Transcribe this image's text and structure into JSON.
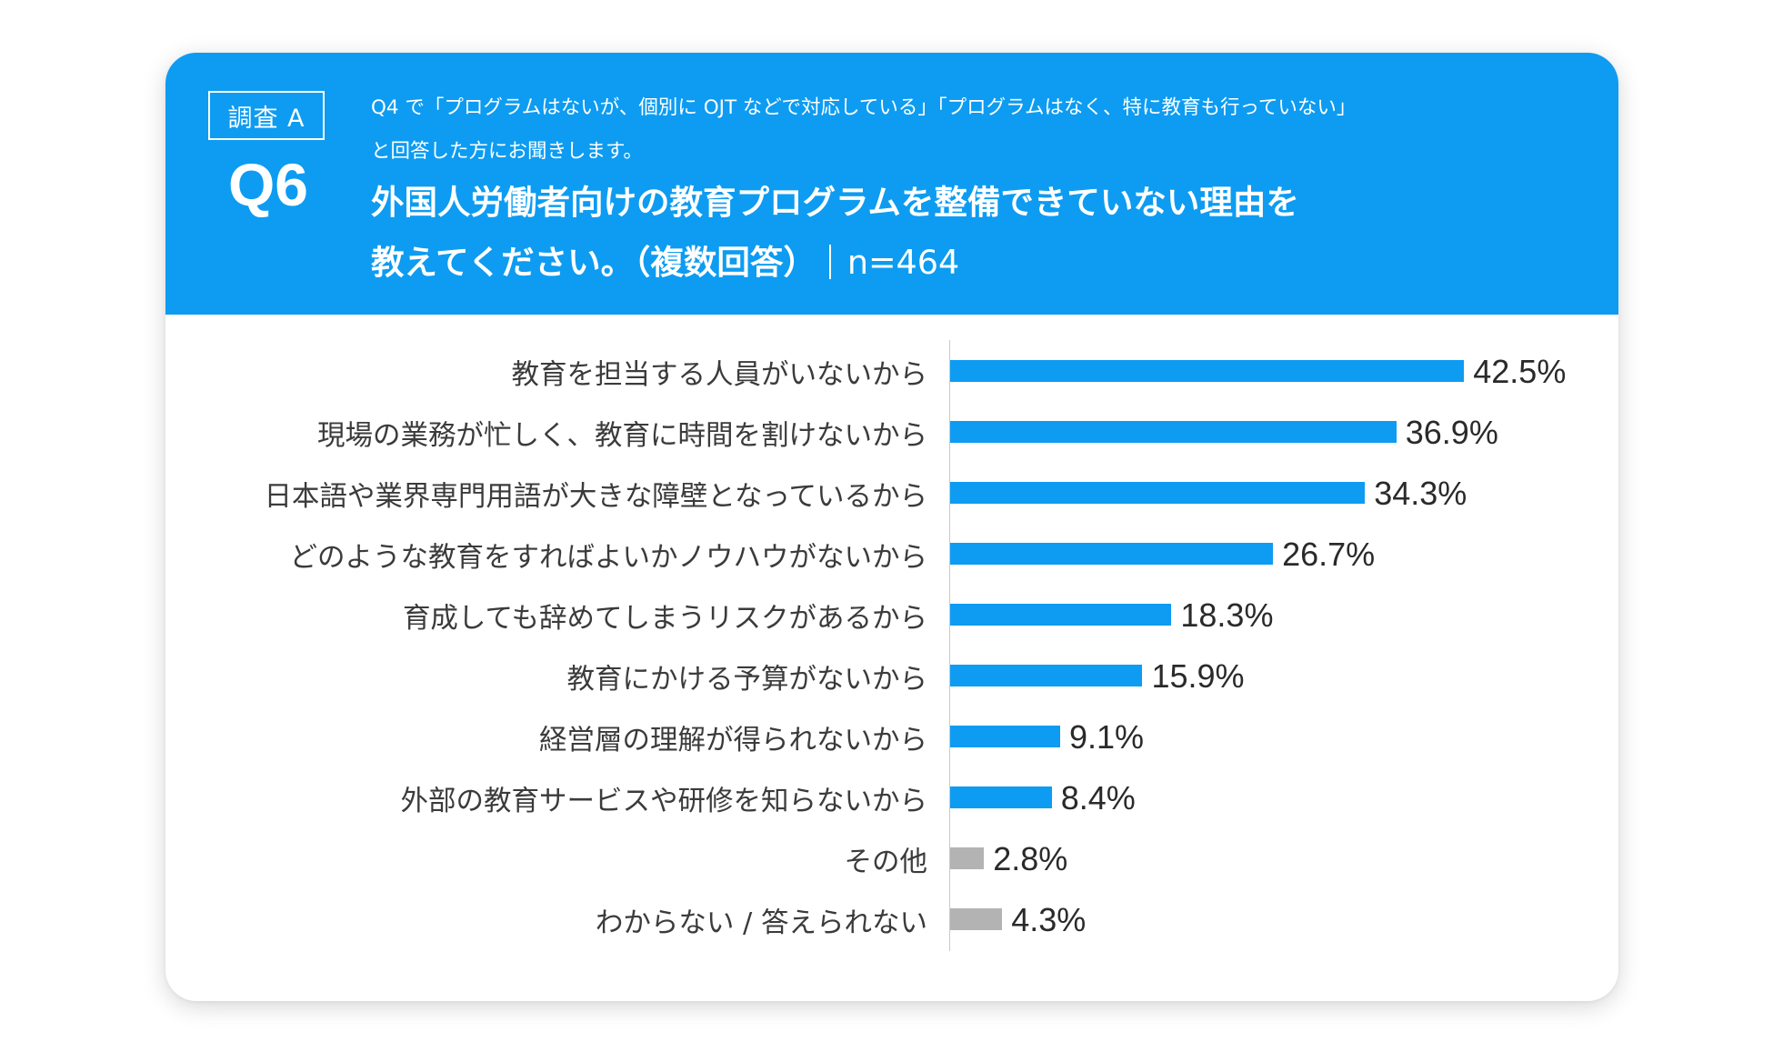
{
  "header": {
    "survey_label": "調査 A",
    "question_number": "Q6",
    "lead_line1": "Q4 で「プログラムはないが、個別に OJT などで対応している」「プログラムはなく、特に教育も行っていない」",
    "lead_line2": "と回答した方にお聞きします。",
    "question_line1": "外国人労働者向けの教育プログラムを整備できていない理由を",
    "question_line2": "教えてください。（複数回答）",
    "sample_size": "n=464"
  },
  "colors": {
    "header_bg": "#0d9cf1",
    "bar_primary": "#0d9cf1",
    "bar_other": "#b3b3b3"
  },
  "chart_data": {
    "type": "bar",
    "orientation": "horizontal",
    "unit": "%",
    "xlim": [
      0,
      50
    ],
    "grid": false,
    "categories": [
      "教育を担当する人員がいないから",
      "現場の業務が忙しく、教育に時間を割けないから",
      "日本語や業界専門用語が大きな障壁となっているから",
      "どのような教育をすればよいかノウハウがないから",
      "育成しても辞めてしまうリスクがあるから",
      "教育にかける予算がないから",
      "経営層の理解が得られないから",
      "外部の教育サービスや研修を知らないから",
      "その他",
      "わからない / 答えられない"
    ],
    "values": [
      42.5,
      36.9,
      34.3,
      26.7,
      18.3,
      15.9,
      9.1,
      8.4,
      2.8,
      4.3
    ],
    "value_labels": [
      "42.5%",
      "36.9%",
      "34.3%",
      "26.7%",
      "18.3%",
      "15.9%",
      "9.1%",
      "8.4%",
      "2.8%",
      "4.3%"
    ],
    "bar_color_groups": [
      "primary",
      "primary",
      "primary",
      "primary",
      "primary",
      "primary",
      "primary",
      "primary",
      "other",
      "other"
    ]
  }
}
